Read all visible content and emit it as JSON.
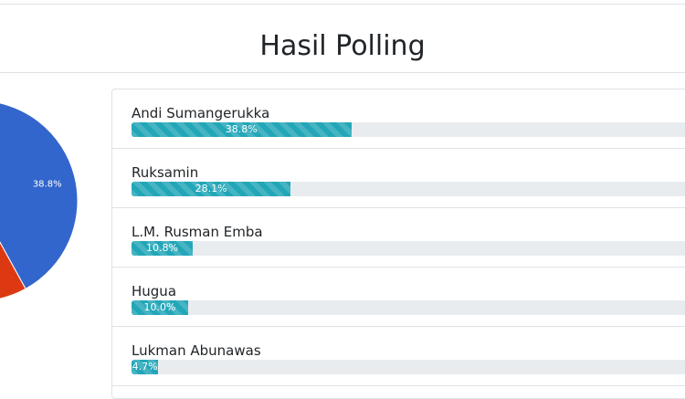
{
  "page": {
    "title": "Hasil Polling"
  },
  "chart_data": {
    "type": "pie",
    "slices": [
      {
        "label": "Andi Sumangerukka",
        "value": 38.8,
        "color": "#3366cc",
        "data_label": "38.8%"
      },
      {
        "label": "Ruksamin",
        "value": 28.1,
        "color": "#dc3912"
      },
      {
        "label": "L.M. Rusman Emba",
        "value": 10.8,
        "color": "#ff9900"
      },
      {
        "label": "Hugua",
        "value": 10.0,
        "color": "#109618"
      },
      {
        "label": "Lukman Abunawas",
        "value": 4.7,
        "color": "#990099"
      }
    ]
  },
  "results": [
    {
      "name": "Andi Sumangerukka",
      "percent": 38.8,
      "label": "38.8%"
    },
    {
      "name": "Ruksamin",
      "percent": 28.1,
      "label": "28.1%"
    },
    {
      "name": "L.M. Rusman Emba",
      "percent": 10.8,
      "label": "10.8%"
    },
    {
      "name": "Hugua",
      "percent": 10.0,
      "label": "10.0%"
    },
    {
      "name": "Lukman Abunawas",
      "percent": 4.7,
      "label": "4.7%"
    }
  ],
  "colors": {
    "bar": "#22a6b8",
    "track": "#e9ecef"
  }
}
